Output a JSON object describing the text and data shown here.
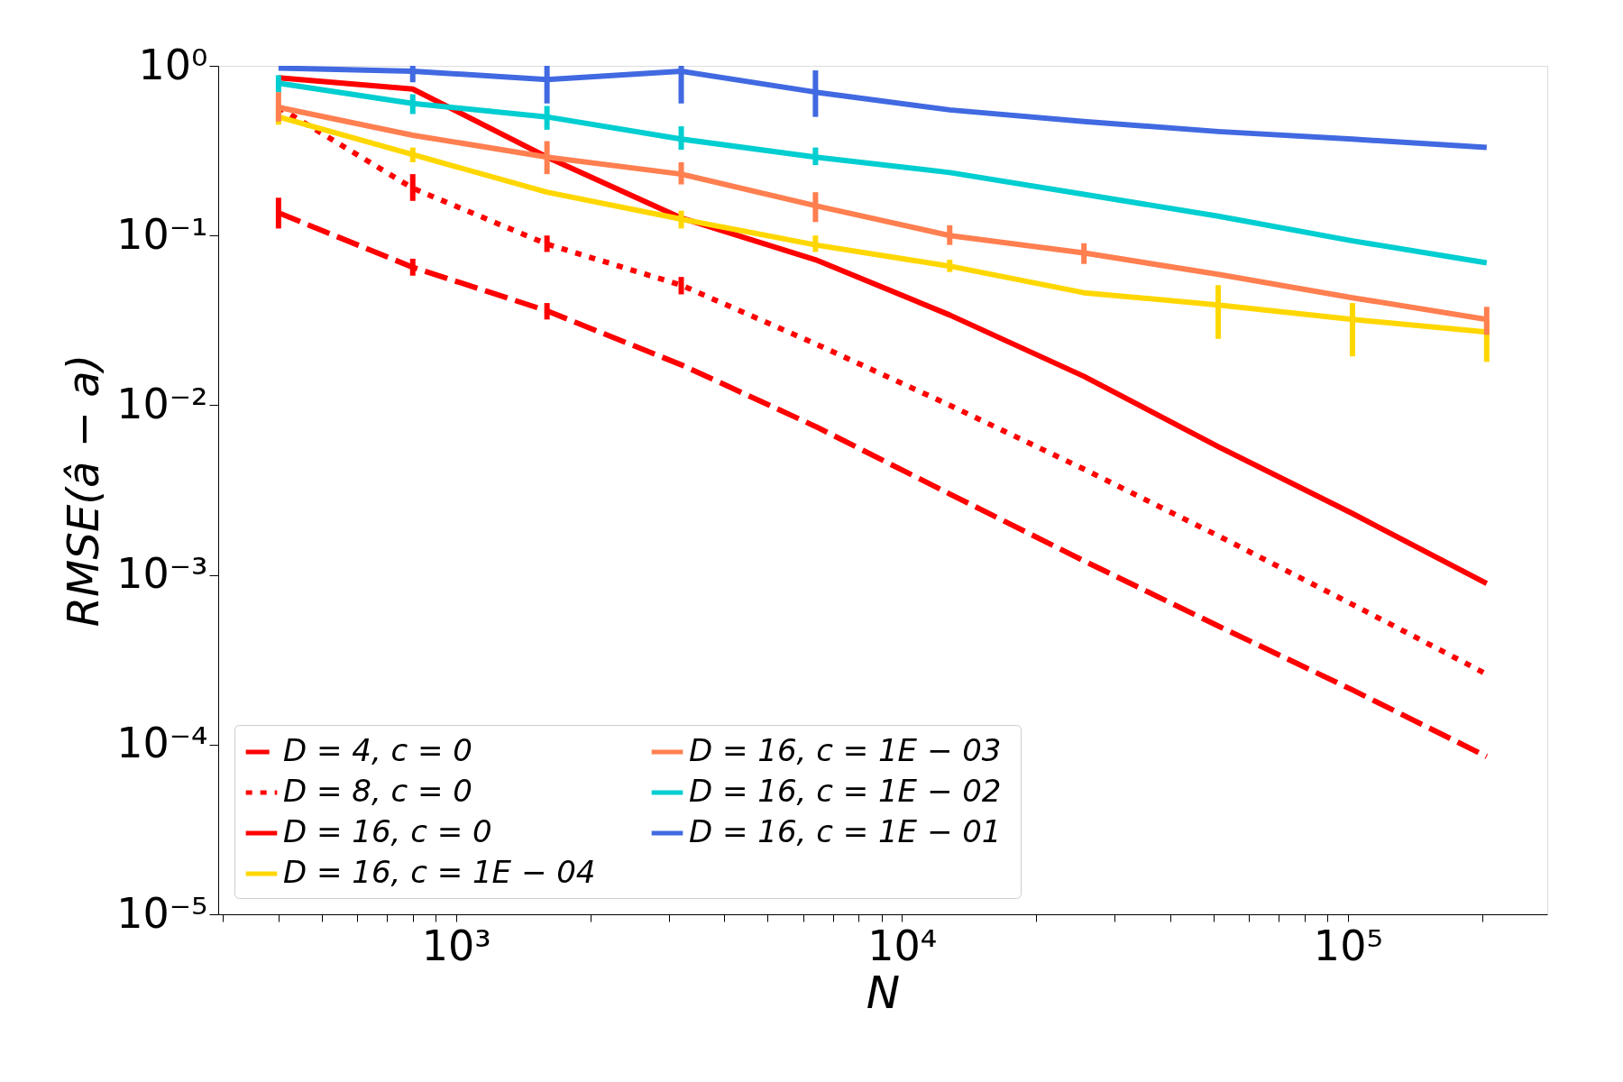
{
  "chart_data": {
    "type": "line",
    "xlabel": "N",
    "ylabel": "RMSE(â − a)",
    "log": "xy",
    "grid": false,
    "legend": "bottom left",
    "marker": "none",
    "x": [
      400,
      800,
      1600,
      3200,
      6400,
      12800,
      25600,
      51200,
      102400,
      204800
    ],
    "xlim": [
      293,
      280000
    ],
    "ylim": [
      1e-05,
      1
    ],
    "xticks": [
      {
        "value": 1000,
        "label": "10³"
      },
      {
        "value": 10000,
        "label": "10⁴"
      },
      {
        "value": 100000,
        "label": "10⁵"
      },
      {
        "value": 300,
        "label": null
      },
      {
        "value": 400,
        "label": null
      },
      {
        "value": 500,
        "label": null
      },
      {
        "value": 600,
        "label": null
      },
      {
        "value": 700,
        "label": null
      },
      {
        "value": 800,
        "label": null
      },
      {
        "value": 900,
        "label": null
      },
      {
        "value": 2000,
        "label": null
      },
      {
        "value": 3000,
        "label": null
      },
      {
        "value": 4000,
        "label": null
      },
      {
        "value": 5000,
        "label": null
      },
      {
        "value": 6000,
        "label": null
      },
      {
        "value": 7000,
        "label": null
      },
      {
        "value": 8000,
        "label": null
      },
      {
        "value": 9000,
        "label": null
      },
      {
        "value": 20000,
        "label": null
      },
      {
        "value": 30000,
        "label": null
      },
      {
        "value": 40000,
        "label": null
      },
      {
        "value": 50000,
        "label": null
      },
      {
        "value": 60000,
        "label": null
      },
      {
        "value": 70000,
        "label": null
      },
      {
        "value": 80000,
        "label": null
      },
      {
        "value": 90000,
        "label": null
      },
      {
        "value": 200000,
        "label": null
      }
    ],
    "yticks": [
      {
        "value": 1e-05,
        "label": "10⁻⁵"
      },
      {
        "value": 0.0001,
        "label": "10⁻⁴"
      },
      {
        "value": 0.001,
        "label": "10⁻³"
      },
      {
        "value": 0.01,
        "label": "10⁻²"
      },
      {
        "value": 0.1,
        "label": "10⁻¹"
      },
      {
        "value": 1,
        "label": "10⁰"
      }
    ],
    "series": [
      {
        "name": "D = 4,  c = 0",
        "color": "#ff0000",
        "line_style": "dashed",
        "values": [
          0.136,
          0.065,
          0.036,
          0.0173,
          0.0075,
          0.003,
          0.00121,
          0.0005,
          0.00021,
          8.5e-05
        ],
        "errors": [
          [
            0.11,
            0.167
          ],
          [
            0.058,
            0.073
          ],
          [
            0.032,
            0.04
          ],
          null,
          null,
          null,
          null,
          null,
          null,
          null
        ]
      },
      {
        "name": "D = 8,  c = 0",
        "color": "#ff0000",
        "line_style": "dotted",
        "values": [
          0.57,
          0.19,
          0.089,
          0.051,
          0.023,
          0.01,
          0.0042,
          0.0017,
          0.00067,
          0.00026
        ],
        "errors": [
          null,
          [
            0.16,
            0.23
          ],
          [
            0.08,
            0.1
          ],
          [
            0.045,
            0.057
          ],
          null,
          null,
          null,
          null,
          null,
          null
        ]
      },
      {
        "name": "D = 16,  c = 0",
        "color": "#ff0000",
        "line_style": "solid",
        "values": [
          0.85,
          0.73,
          0.29,
          0.127,
          0.072,
          0.034,
          0.0148,
          0.0057,
          0.0023,
          0.00089
        ],
        "errors": [
          null,
          null,
          null,
          null,
          null,
          null,
          null,
          null,
          null,
          null
        ]
      },
      {
        "name": "D = 16,  c = 1E − 04",
        "color": "#ffd700",
        "line_style": "solid",
        "values": [
          0.5,
          0.3,
          0.18,
          0.125,
          0.088,
          0.066,
          0.046,
          0.039,
          0.032,
          0.027
        ],
        "errors": [
          [
            0.45,
            0.56
          ],
          [
            0.27,
            0.33
          ],
          null,
          [
            0.11,
            0.14
          ],
          [
            0.08,
            0.1
          ],
          [
            0.061,
            0.072
          ],
          null,
          [
            0.0246,
            0.051
          ],
          [
            0.0194,
            0.04
          ],
          [
            0.018,
            0.032
          ]
        ]
      },
      {
        "name": "D = 16,  c = 1E − 03",
        "color": "#ff7f50",
        "line_style": "solid",
        "values": [
          0.57,
          0.39,
          0.29,
          0.23,
          0.15,
          0.1,
          0.079,
          0.059,
          0.043,
          0.032
        ],
        "errors": [
          [
            0.47,
            0.7
          ],
          null,
          [
            0.23,
            0.36
          ],
          [
            0.2,
            0.27
          ],
          [
            0.12,
            0.18
          ],
          [
            0.088,
            0.115
          ],
          [
            0.068,
            0.09
          ],
          null,
          null,
          [
            0.026,
            0.038
          ]
        ]
      },
      {
        "name": "D = 16,  c = 1E − 02",
        "color": "#00ced1",
        "line_style": "solid",
        "values": [
          0.79,
          0.6,
          0.5,
          0.37,
          0.29,
          0.235,
          0.175,
          0.13,
          0.093,
          0.069
        ],
        "errors": [
          [
            0.7,
            0.88
          ],
          [
            0.52,
            0.68
          ],
          [
            0.42,
            0.58
          ],
          [
            0.32,
            0.44
          ],
          [
            0.26,
            0.33
          ],
          null,
          null,
          null,
          null,
          null
        ]
      },
      {
        "name": "D = 16,  c = 1E − 01",
        "color": "#4169e1",
        "line_style": "solid",
        "values": [
          0.97,
          0.93,
          0.83,
          0.93,
          0.7,
          0.55,
          0.47,
          0.41,
          0.37,
          0.33
        ],
        "errors": [
          null,
          [
            0.8,
            1.0
          ],
          [
            0.6,
            1.0
          ],
          [
            0.6,
            1.0
          ],
          [
            0.5,
            0.94
          ],
          null,
          null,
          null,
          null,
          null
        ]
      }
    ]
  }
}
